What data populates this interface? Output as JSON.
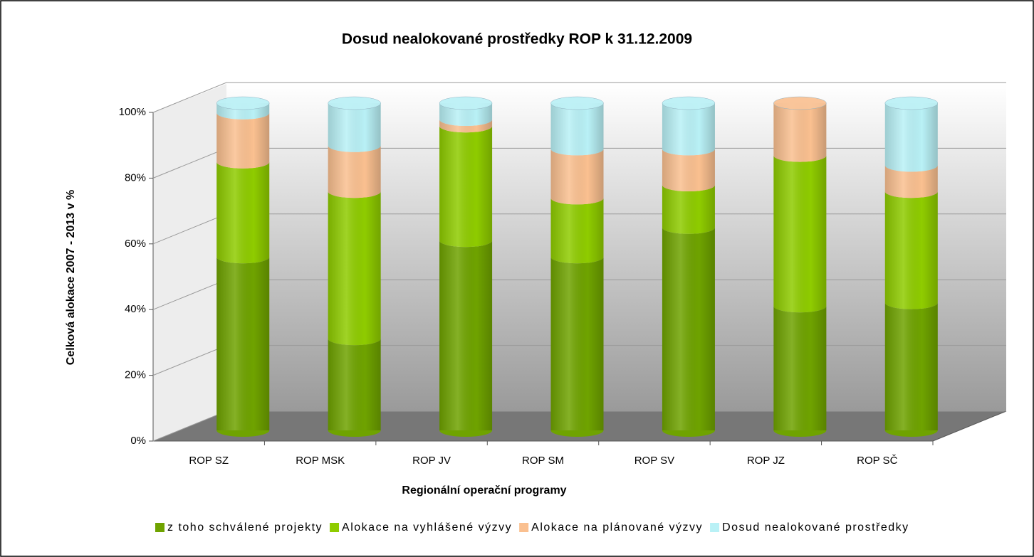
{
  "chart_data": {
    "type": "bar",
    "stacked": true,
    "title": "Dosud nealokované prostředky ROP k 31.12.2009",
    "x_label": "Regionální operační programy",
    "y_label": "Celková alokace 2007 - 2013 v %",
    "categories": [
      "ROP SZ",
      "ROP MSK",
      "ROP JV",
      "ROP SM",
      "ROP SV",
      "ROP JZ",
      "ROP SČ"
    ],
    "series": [
      {
        "name": "z toho schválené projekty",
        "color": "#6fa300",
        "values": [
          53,
          28,
          58,
          53,
          62,
          38,
          39
        ]
      },
      {
        "name": "Alokace na vyhlášené výzvy",
        "color": "#8fcc00",
        "values": [
          29,
          45,
          35,
          18,
          13,
          46,
          34
        ]
      },
      {
        "name": "Alokace na plánované výzvy",
        "color": "#fac090",
        "values": [
          15,
          14,
          2,
          15,
          11,
          16,
          8
        ]
      },
      {
        "name": "Dosud nealokované prostředky",
        "color": "#b9f1f6",
        "values": [
          3,
          13,
          5,
          14,
          14,
          0,
          19
        ]
      }
    ],
    "ylim": [
      0,
      100
    ],
    "yticks": [
      {
        "value": 0,
        "label": "0%"
      },
      {
        "value": 20,
        "label": "20%"
      },
      {
        "value": 40,
        "label": "40%"
      },
      {
        "value": 60,
        "label": "60%"
      },
      {
        "value": 80,
        "label": "80%"
      },
      {
        "value": 100,
        "label": "100%"
      }
    ],
    "grid": true,
    "legend": "bottom"
  }
}
